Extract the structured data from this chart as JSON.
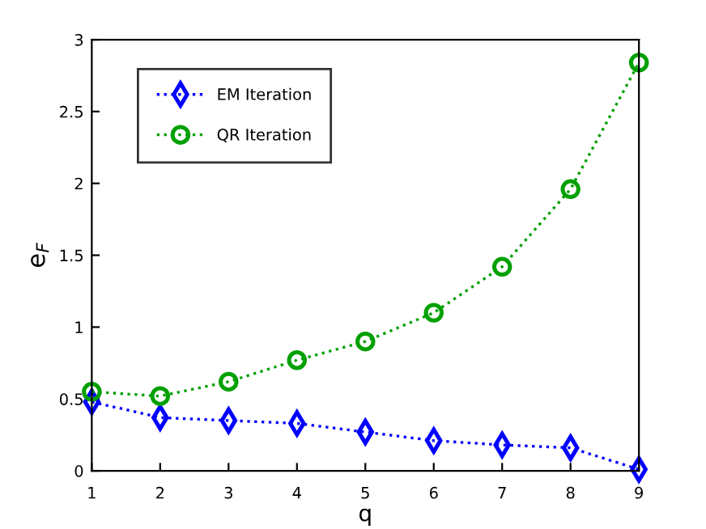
{
  "chart_data": {
    "type": "line",
    "xlabel": "q",
    "ylabel": "e$_{F}$",
    "x": [
      1,
      2,
      3,
      4,
      5,
      6,
      7,
      8,
      9
    ],
    "series": [
      {
        "name": "EM Iteration",
        "color": "#0000ff",
        "marker": "diamond",
        "values": [
          0.48,
          0.37,
          0.35,
          0.33,
          0.27,
          0.21,
          0.18,
          0.16,
          0.01
        ]
      },
      {
        "name": "QR Iteration",
        "color": "#00a000",
        "marker": "circle",
        "values": [
          0.55,
          0.52,
          0.62,
          0.77,
          0.9,
          1.1,
          1.42,
          1.96,
          2.84
        ]
      }
    ],
    "line_style": "dotted",
    "legend": "top left",
    "grid": false,
    "xlim": [
      1,
      9
    ],
    "xticks": [
      1,
      2,
      3,
      4,
      5,
      6,
      7,
      8,
      9
    ],
    "ylim": [
      0,
      3
    ],
    "yticks": [
      0,
      0.5,
      1,
      1.5,
      2,
      2.5,
      3
    ]
  }
}
